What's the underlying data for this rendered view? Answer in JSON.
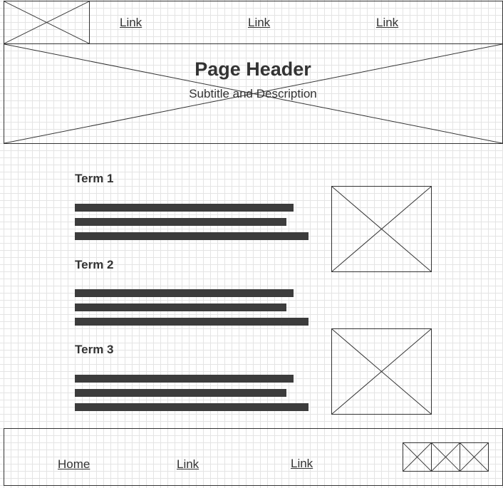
{
  "nav": {
    "links": [
      "Link",
      "Link",
      "Link"
    ]
  },
  "header": {
    "title": "Page Header",
    "subtitle": "Subtitle and Description"
  },
  "terms": [
    {
      "label": "Term 1"
    },
    {
      "label": "Term 2"
    },
    {
      "label": "Term 3"
    }
  ],
  "footer": {
    "links": [
      "Home",
      "Link",
      "Link"
    ]
  },
  "colors": {
    "stroke": "#333333",
    "text_bar": "#3c3c3c",
    "grid": "#e4e4e4"
  }
}
